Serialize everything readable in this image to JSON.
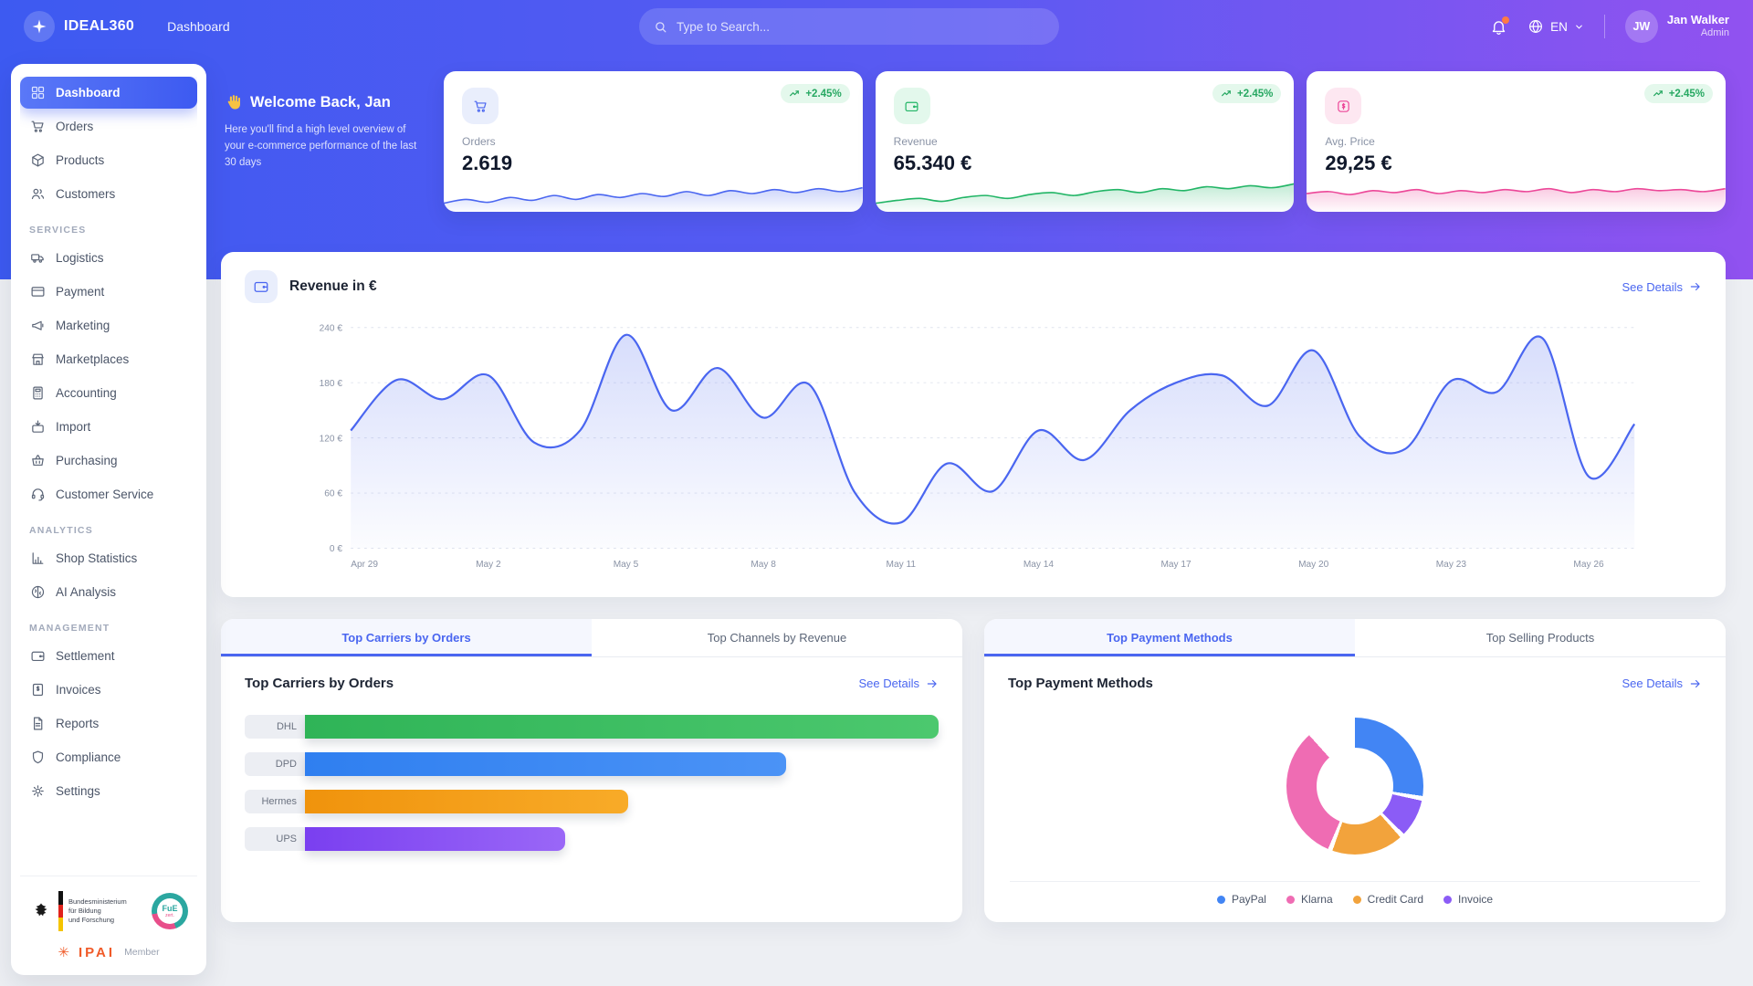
{
  "navbar": {
    "brand": "IDEAL360",
    "breadcrumb": "Dashboard",
    "search_placeholder": "Type to Search...",
    "language": "EN",
    "user_name": "Jan Walker",
    "user_role": "Admin",
    "user_initials": "JW"
  },
  "sidebar": {
    "sections": [
      {
        "header": null,
        "items": [
          {
            "label": "Dashboard",
            "icon": "grid",
            "active": true
          },
          {
            "label": "Orders",
            "icon": "cart"
          },
          {
            "label": "Products",
            "icon": "cube"
          },
          {
            "label": "Customers",
            "icon": "users"
          }
        ]
      },
      {
        "header": "SERVICES",
        "items": [
          {
            "label": "Logistics",
            "icon": "truck"
          },
          {
            "label": "Payment",
            "icon": "credit-card"
          },
          {
            "label": "Marketing",
            "icon": "megaphone"
          },
          {
            "label": "Marketplaces",
            "icon": "store"
          },
          {
            "label": "Accounting",
            "icon": "calculator"
          },
          {
            "label": "Import",
            "icon": "import"
          },
          {
            "label": "Purchasing",
            "icon": "basket"
          },
          {
            "label": "Customer Service",
            "icon": "headset"
          }
        ]
      },
      {
        "header": "ANALYTICS",
        "items": [
          {
            "label": "Shop Statistics",
            "icon": "chart-bar"
          },
          {
            "label": "AI Analysis",
            "icon": "brain"
          }
        ]
      },
      {
        "header": "MANAGEMENT",
        "items": [
          {
            "label": "Settlement",
            "icon": "wallet"
          },
          {
            "label": "Invoices",
            "icon": "invoice"
          },
          {
            "label": "Reports",
            "icon": "file-text"
          },
          {
            "label": "Compliance",
            "icon": "shield"
          },
          {
            "label": "Settings",
            "icon": "gear"
          }
        ]
      }
    ],
    "footer": {
      "bmbf_lines": [
        "Bundesministerium",
        "für Bildung",
        "und Forschung"
      ],
      "fue_label": "FuE",
      "ipai_name": "IPAI",
      "member_label": "Member"
    }
  },
  "welcome": {
    "title": "Welcome Back, Jan",
    "subtitle": "Here you'll find a high level overview of your e-commerce performance of the last 30 days"
  },
  "kpis": [
    {
      "label": "Orders",
      "value": "2.619",
      "change": "+2.45%",
      "icon": "cart",
      "accent": "#4a66f0",
      "tile_bg": "#e9eefc",
      "spark": [
        30,
        34,
        31,
        36,
        33,
        38,
        34,
        39,
        36,
        40,
        37,
        42,
        38,
        43,
        40,
        44,
        41,
        45,
        42,
        46
      ]
    },
    {
      "label": "Revenue",
      "value": "65.340 €",
      "change": "+2.45%",
      "icon": "wallet",
      "accent": "#22b566",
      "tile_bg": "#e3f8ec",
      "spark": [
        30,
        33,
        35,
        32,
        36,
        38,
        35,
        39,
        41,
        38,
        42,
        44,
        41,
        45,
        43,
        47,
        45,
        48,
        46,
        50
      ]
    },
    {
      "label": "Avg. Price",
      "value": "29,25 €",
      "change": "+2.45%",
      "icon": "price-tag",
      "accent": "#ec4899",
      "tile_bg": "#fde7f1",
      "spark": [
        40,
        42,
        39,
        43,
        41,
        44,
        40,
        43,
        41,
        44,
        42,
        45,
        41,
        44,
        42,
        45,
        43,
        44,
        42,
        45
      ]
    }
  ],
  "revenue_panel": {
    "title": "Revenue in €",
    "see_details": "See Details"
  },
  "left_tabs": {
    "tabs": [
      "Top Carriers by Orders",
      "Top Channels by Revenue"
    ],
    "active": 0
  },
  "carriers_panel": {
    "title": "Top Carriers by Orders",
    "see_details": "See Details"
  },
  "right_tabs": {
    "tabs": [
      "Top Payment Methods",
      "Top Selling Products"
    ],
    "active": 0
  },
  "payments_panel": {
    "title": "Top Payment Methods",
    "see_details": "See Details"
  },
  "chart_data": [
    {
      "type": "line",
      "title": "Revenue in €",
      "ylabel": "€",
      "ylim": [
        0,
        240
      ],
      "yticks": [
        "0 €",
        "60 €",
        "120 €",
        "180 €",
        "240 €"
      ],
      "grid": "dashed horizontal",
      "x": [
        "Apr 29",
        "Apr 30",
        "May 1",
        "May 2",
        "May 3",
        "May 4",
        "May 5",
        "May 6",
        "May 7",
        "May 8",
        "May 9",
        "May 10",
        "May 11",
        "May 12",
        "May 13",
        "May 14",
        "May 15",
        "May 16",
        "May 17",
        "May 18",
        "May 19",
        "May 20",
        "May 21",
        "May 22",
        "May 23",
        "May 24",
        "May 25",
        "May 26",
        "May 27"
      ],
      "xtick_labels": [
        "Apr 29",
        "May 2",
        "May 5",
        "May 8",
        "May 11",
        "May 14",
        "May 17",
        "May 20",
        "May 23",
        "May 26"
      ],
      "values": [
        128,
        183,
        162,
        188,
        115,
        128,
        232,
        150,
        196,
        142,
        178,
        60,
        28,
        92,
        62,
        128,
        96,
        150,
        180,
        188,
        155,
        215,
        122,
        108,
        182,
        170,
        228,
        78,
        135
      ],
      "line_color": "#4a66f0",
      "area_fill": "rgba(74,102,240,0.16)"
    },
    {
      "type": "bar",
      "title": "Top Carriers by Orders",
      "orientation": "horizontal",
      "categories": [
        "DHL",
        "DPD",
        "Hermes",
        "UPS"
      ],
      "values_pct_of_max": [
        100,
        76,
        51,
        41
      ],
      "colors": [
        [
          "#2fb457",
          "#4cc86e"
        ],
        [
          "#2f7ff0",
          "#4b93f6"
        ],
        [
          "#f0930c",
          "#f8ab28"
        ],
        [
          "#7a3ff0",
          "#9a67f7"
        ]
      ]
    },
    {
      "type": "pie",
      "title": "Top Payment Methods",
      "donut": true,
      "start_angle_deg": -38,
      "legend_position": "bottom",
      "segments": [
        {
          "label": "PayPal",
          "pct": 39,
          "color": "#4285f4"
        },
        {
          "label": "Klarna",
          "pct": 33,
          "color": "#ef6cb3"
        },
        {
          "label": "Credit Card",
          "pct": 18,
          "color": "#f2a33c"
        },
        {
          "label": "Invoice",
          "pct": 10,
          "color": "#8b5cf6"
        }
      ],
      "draw_order": [
        0,
        3,
        2,
        1
      ]
    }
  ]
}
